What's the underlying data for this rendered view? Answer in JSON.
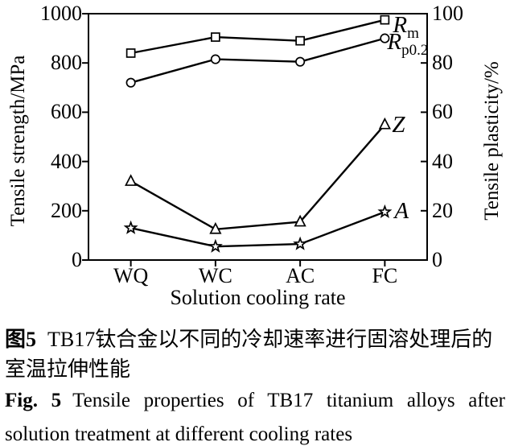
{
  "chart_data": {
    "type": "line",
    "title": "",
    "categories": [
      "WQ",
      "WC",
      "AC",
      "FC"
    ],
    "xlabel": "Solution cooling rate",
    "left_axis": {
      "label": "Tensile strength/MPa",
      "range": [
        0,
        1000
      ],
      "ticks": [
        0,
        200,
        400,
        600,
        800,
        1000
      ]
    },
    "right_axis": {
      "label": "Tensile plasticity/%",
      "range": [
        0,
        100
      ],
      "ticks": [
        0,
        20,
        40,
        60,
        80,
        100
      ]
    },
    "grid": false,
    "line_color": "#000000",
    "marker_fill": "#ffffff",
    "series": [
      {
        "name": "Rm",
        "label": {
          "main": "R",
          "sub": "m"
        },
        "axis": "left",
        "marker": "square",
        "values": [
          840,
          905,
          890,
          975
        ]
      },
      {
        "name": "Rp0.2",
        "label": {
          "main": "R",
          "sub": "p0.2"
        },
        "axis": "left",
        "marker": "circle",
        "values": [
          720,
          815,
          805,
          900
        ]
      },
      {
        "name": "Z",
        "label": {
          "main": "Z",
          "sub": ""
        },
        "axis": "right",
        "marker": "triangle",
        "values": [
          32,
          12.5,
          15.5,
          55
        ]
      },
      {
        "name": "A",
        "label": {
          "main": "A",
          "sub": ""
        },
        "axis": "right",
        "marker": "star",
        "values": [
          13,
          5.5,
          6.5,
          19.5
        ]
      }
    ]
  },
  "caption": {
    "zh_label": "图5",
    "zh_line1": "TB17钛合金以不同的冷却速率进行固溶处理后的",
    "zh_line2": "室温拉伸性能",
    "en_label": "Fig. 5",
    "en_line1": "Tensile properties of TB17 titanium alloys after",
    "en_line2": "solution treatment at different cooling rates"
  }
}
